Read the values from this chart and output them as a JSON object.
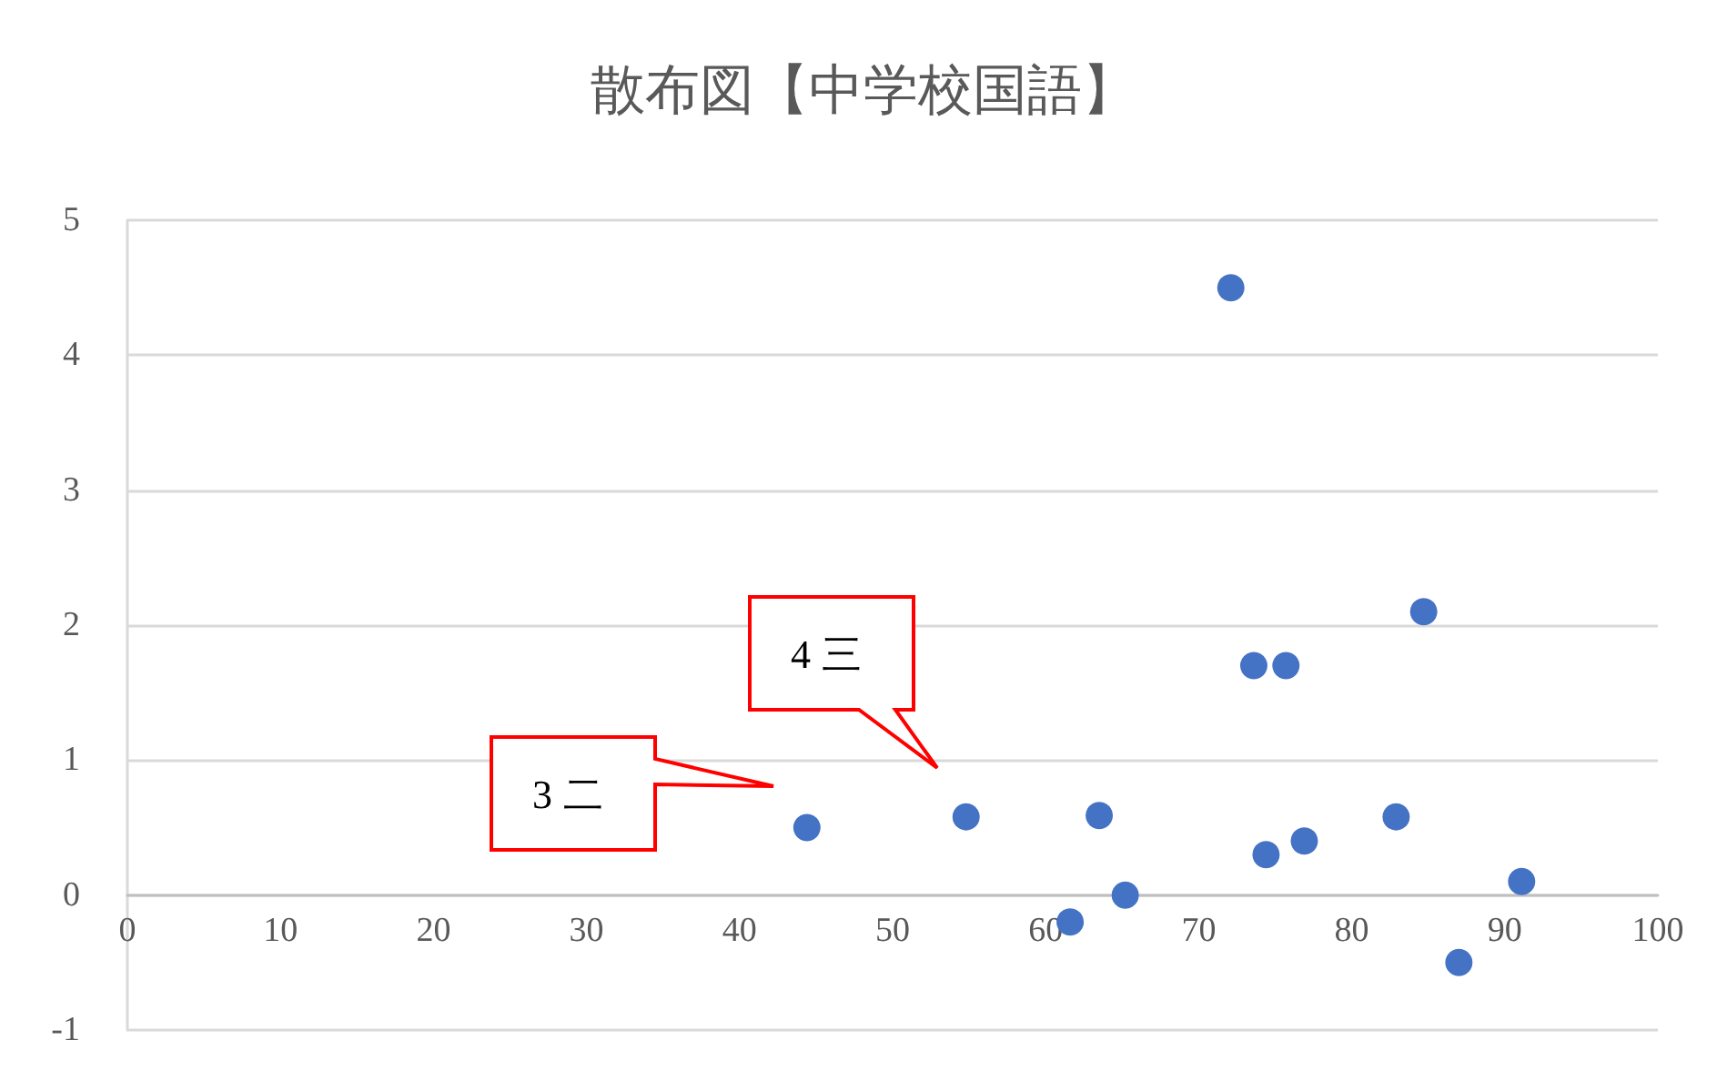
{
  "chart_data": {
    "type": "scatter",
    "title": "散布図【中学校国語】",
    "x": [
      44.4,
      54.8,
      63.5,
      61.6,
      65.2,
      72.1,
      73.6,
      75.7,
      74.4,
      76.9,
      82.9,
      84.7,
      87.0,
      91.1
    ],
    "series": [
      {
        "color": "#4472c4",
        "values": [
          0.5,
          0.58,
          0.59,
          -0.2,
          0,
          4.5,
          1.7,
          1.7,
          0.3,
          0.4,
          0.58,
          2.1,
          -0.5,
          0.1
        ]
      }
    ],
    "xlim": [
      0,
      100
    ],
    "xticks": [
      0,
      10,
      20,
      30,
      40,
      50,
      60,
      70,
      80,
      90,
      100
    ],
    "ylim": [
      -1,
      5
    ],
    "yticks": [
      -1,
      0,
      1,
      2,
      3,
      4,
      5
    ],
    "grid": "y",
    "marker": "circle",
    "annotations": [
      "3二",
      "4三"
    ]
  }
}
